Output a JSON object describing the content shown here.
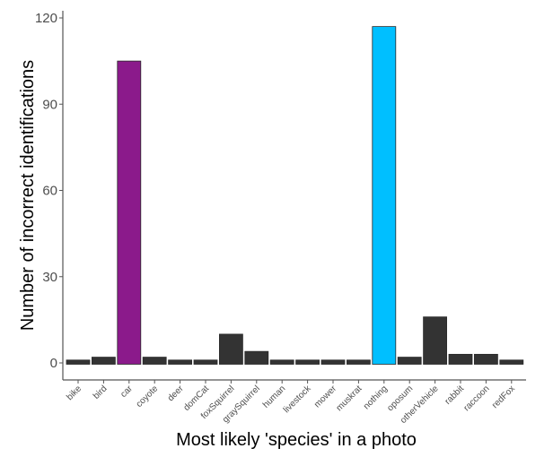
{
  "chart_data": {
    "type": "bar",
    "title": "",
    "xlabel": "Most likely 'species' in a photo",
    "ylabel": "Number of incorrect identifications",
    "ylim": [
      0,
      120
    ],
    "yticks": [
      0,
      30,
      60,
      90,
      120
    ],
    "grid": false,
    "legend": null,
    "categories": [
      "bike",
      "bird",
      "car",
      "coyote",
      "deer",
      "domCat",
      "foxSquirrel",
      "graySquirrel",
      "human",
      "livestock",
      "mower",
      "muskrat",
      "nothing",
      "oposum",
      "otherVehicle",
      "rabbit",
      "raccoon",
      "redFox"
    ],
    "values": [
      1,
      2,
      105,
      2,
      1,
      1,
      10,
      4,
      1,
      1,
      1,
      1,
      117,
      2,
      16,
      3,
      3,
      1
    ],
    "colors": [
      "#333333",
      "#333333",
      "#8B1A8B",
      "#333333",
      "#333333",
      "#333333",
      "#333333",
      "#333333",
      "#333333",
      "#333333",
      "#333333",
      "#333333",
      "#00BFFF",
      "#333333",
      "#333333",
      "#333333",
      "#333333",
      "#333333"
    ],
    "default_bar_color": "#333333",
    "highlight_colors": {
      "car": "#8B1A8B",
      "nothing": "#00BFFF"
    }
  }
}
